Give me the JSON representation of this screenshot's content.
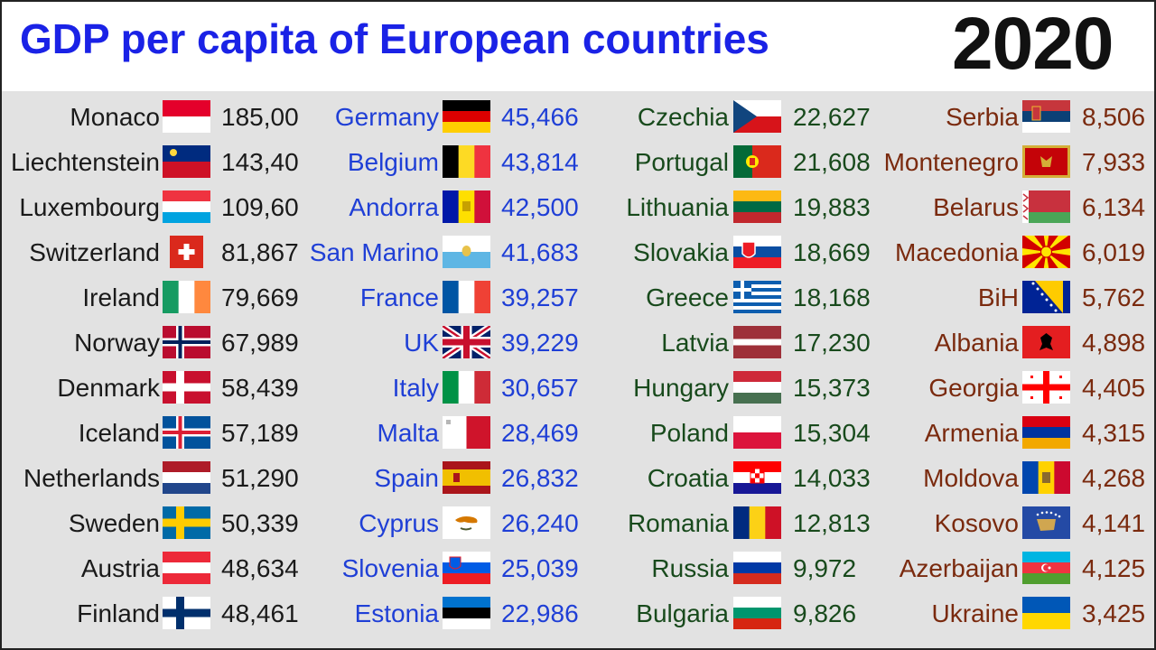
{
  "header": {
    "title": "GDP per capita of European countries",
    "year": "2020"
  },
  "columns": [
    {
      "color": "#1a1a1a",
      "rows": [
        {
          "country": "Monaco",
          "value": "185,00",
          "flag": "monaco-flag"
        },
        {
          "country": "Liechtenstein",
          "value": "143,40",
          "flag": "liechtenstein-flag"
        },
        {
          "country": "Luxembourg",
          "value": "109,60",
          "flag": "luxembourg-flag"
        },
        {
          "country": "Switzerland",
          "value": "81,867",
          "flag": "switzerland-flag"
        },
        {
          "country": "Ireland",
          "value": "79,669",
          "flag": "ireland-flag"
        },
        {
          "country": "Norway",
          "value": "67,989",
          "flag": "norway-flag"
        },
        {
          "country": "Denmark",
          "value": "58,439",
          "flag": "denmark-flag"
        },
        {
          "country": "Iceland",
          "value": "57,189",
          "flag": "iceland-flag"
        },
        {
          "country": "Netherlands",
          "value": "51,290",
          "flag": "netherlands-flag"
        },
        {
          "country": "Sweden",
          "value": "50,339",
          "flag": "sweden-flag"
        },
        {
          "country": "Austria",
          "value": "48,634",
          "flag": "austria-flag"
        },
        {
          "country": "Finland",
          "value": "48,461",
          "flag": "finland-flag"
        }
      ]
    },
    {
      "color": "#1f3fd6",
      "rows": [
        {
          "country": "Germany",
          "value": "45,466",
          "flag": "germany-flag"
        },
        {
          "country": "Belgium",
          "value": "43,814",
          "flag": "belgium-flag"
        },
        {
          "country": "Andorra",
          "value": "42,500",
          "flag": "andorra-flag"
        },
        {
          "country": "San Marino",
          "value": "41,683",
          "flag": "san-marino-flag"
        },
        {
          "country": "France",
          "value": "39,257",
          "flag": "france-flag"
        },
        {
          "country": "UK",
          "value": "39,229",
          "flag": "uk-flag"
        },
        {
          "country": "Italy",
          "value": "30,657",
          "flag": "italy-flag"
        },
        {
          "country": "Malta",
          "value": "28,469",
          "flag": "malta-flag"
        },
        {
          "country": "Spain",
          "value": "26,832",
          "flag": "spain-flag"
        },
        {
          "country": "Cyprus",
          "value": "26,240",
          "flag": "cyprus-flag"
        },
        {
          "country": "Slovenia",
          "value": "25,039",
          "flag": "slovenia-flag"
        },
        {
          "country": "Estonia",
          "value": "22,986",
          "flag": "estonia-flag"
        }
      ]
    },
    {
      "color": "#184a1c",
      "rows": [
        {
          "country": "Czechia",
          "value": "22,627",
          "flag": "czechia-flag"
        },
        {
          "country": "Portugal",
          "value": "21,608",
          "flag": "portugal-flag"
        },
        {
          "country": "Lithuania",
          "value": "19,883",
          "flag": "lithuania-flag"
        },
        {
          "country": "Slovakia",
          "value": "18,669",
          "flag": "slovakia-flag"
        },
        {
          "country": "Greece",
          "value": "18,168",
          "flag": "greece-flag"
        },
        {
          "country": "Latvia",
          "value": "17,230",
          "flag": "latvia-flag"
        },
        {
          "country": "Hungary",
          "value": "15,373",
          "flag": "hungary-flag"
        },
        {
          "country": "Poland",
          "value": "15,304",
          "flag": "poland-flag"
        },
        {
          "country": "Croatia",
          "value": "14,033",
          "flag": "croatia-flag"
        },
        {
          "country": "Romania",
          "value": "12,813",
          "flag": "romania-flag"
        },
        {
          "country": "Russia",
          "value": "9,972",
          "flag": "russia-flag"
        },
        {
          "country": "Bulgaria",
          "value": "9,826",
          "flag": "bulgaria-flag"
        }
      ]
    },
    {
      "color": "#7a2a0e",
      "rows": [
        {
          "country": "Serbia",
          "value": "8,506",
          "flag": "serbia-flag"
        },
        {
          "country": "Montenegro",
          "value": "7,933",
          "flag": "montenegro-flag"
        },
        {
          "country": "Belarus",
          "value": "6,134",
          "flag": "belarus-flag"
        },
        {
          "country": "Macedonia",
          "value": "6,019",
          "flag": "macedonia-flag"
        },
        {
          "country": "BiH",
          "value": "5,762",
          "flag": "bih-flag"
        },
        {
          "country": "Albania",
          "value": "4,898",
          "flag": "albania-flag"
        },
        {
          "country": "Georgia",
          "value": "4,405",
          "flag": "georgia-flag"
        },
        {
          "country": "Armenia",
          "value": "4,315",
          "flag": "armenia-flag"
        },
        {
          "country": "Moldova",
          "value": "4,268",
          "flag": "moldova-flag"
        },
        {
          "country": "Kosovo",
          "value": "4,141",
          "flag": "kosovo-flag"
        },
        {
          "country": "Azerbaijan",
          "value": "4,125",
          "flag": "azerbaijan-flag"
        },
        {
          "country": "Ukraine",
          "value": "3,425",
          "flag": "ukraine-flag"
        }
      ]
    }
  ]
}
